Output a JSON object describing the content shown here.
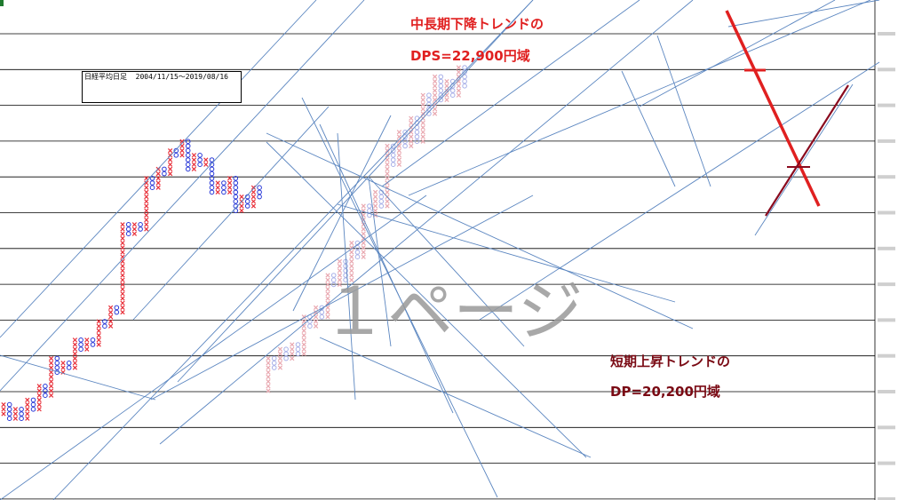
{
  "info_box": {
    "title": "日経平均日足",
    "range": "2004/11/15～2019/08/16"
  },
  "annotations": {
    "long_trend_title": "中長期下降トレンドの",
    "long_trend_target": "DPS=22,900円域",
    "short_trend_title": "短期上昇トレンドの",
    "short_trend_target": "DP=20,200円域"
  },
  "watermark": "１ページ",
  "colors": {
    "x_rising": "#e8303a",
    "o_falling": "#2a3ad8",
    "x_rising_faint": "#e9a8b0",
    "o_falling_faint": "#a8b0e8",
    "trendline": "#5b86c0",
    "down_trend_marker": "#e02020",
    "up_trend_marker": "#8a0a1e"
  },
  "chart_data": {
    "type": "point-and-figure",
    "legend_symbols": [
      "X",
      "O"
    ],
    "y_ticks_visible_but_illegible": true,
    "grid": "horizontal",
    "series": [
      {
        "values": [
          [
            1,
            3
          ],
          [
            2,
            -4
          ],
          [
            3,
            3
          ],
          [
            4,
            -3
          ],
          [
            5,
            5
          ],
          [
            6,
            -3
          ],
          [
            7,
            6
          ],
          [
            8,
            -3
          ],
          [
            9,
            9
          ],
          [
            10,
            -4
          ],
          [
            11,
            3
          ],
          [
            12,
            -2
          ],
          [
            13,
            7
          ],
          [
            14,
            -3
          ],
          [
            15,
            3
          ],
          [
            16,
            -2
          ],
          [
            17,
            6
          ],
          [
            18,
            -2
          ],
          [
            19,
            5
          ],
          [
            20,
            -2
          ],
          [
            21,
            20
          ],
          [
            22,
            -3
          ],
          [
            23,
            3
          ],
          [
            24,
            -2
          ],
          [
            25,
            12
          ],
          [
            26,
            -3
          ],
          [
            27,
            5
          ],
          [
            28,
            -2
          ],
          [
            29,
            6
          ],
          [
            30,
            -2
          ],
          [
            31,
            4
          ],
          [
            32,
            -7
          ],
          [
            33,
            4
          ],
          [
            34,
            -3
          ],
          [
            35,
            2
          ],
          [
            36,
            -8
          ],
          [
            37,
            3
          ],
          [
            38,
            -3
          ],
          [
            39,
            4
          ],
          [
            40,
            -8
          ],
          [
            41,
            4
          ],
          [
            42,
            -3
          ],
          [
            43,
            5
          ],
          [
            44,
            -3
          ]
        ]
      },
      {
        "values": [
          [
            45,
            8
          ],
          [
            46,
            -3
          ],
          [
            47,
            5
          ],
          [
            48,
            -3
          ],
          [
            49,
            4
          ],
          [
            50,
            -3
          ],
          [
            51,
            9
          ],
          [
            52,
            -3
          ],
          [
            53,
            5
          ],
          [
            54,
            -3
          ],
          [
            55,
            10
          ],
          [
            56,
            -3
          ],
          [
            57,
            6
          ],
          [
            58,
            -5
          ],
          [
            59,
            9
          ],
          [
            60,
            -4
          ],
          [
            61,
            12
          ],
          [
            62,
            -3
          ],
          [
            63,
            6
          ],
          [
            64,
            -4
          ],
          [
            65,
            14
          ],
          [
            66,
            -5
          ],
          [
            67,
            8
          ],
          [
            68,
            -4
          ],
          [
            69,
            7
          ],
          [
            70,
            -6
          ],
          [
            71,
            11
          ],
          [
            72,
            -5
          ],
          [
            73,
            9
          ],
          [
            74,
            -6
          ],
          [
            75,
            5
          ],
          [
            76,
            -4
          ],
          [
            77,
            7
          ],
          [
            78,
            -5
          ]
        ]
      }
    ]
  }
}
